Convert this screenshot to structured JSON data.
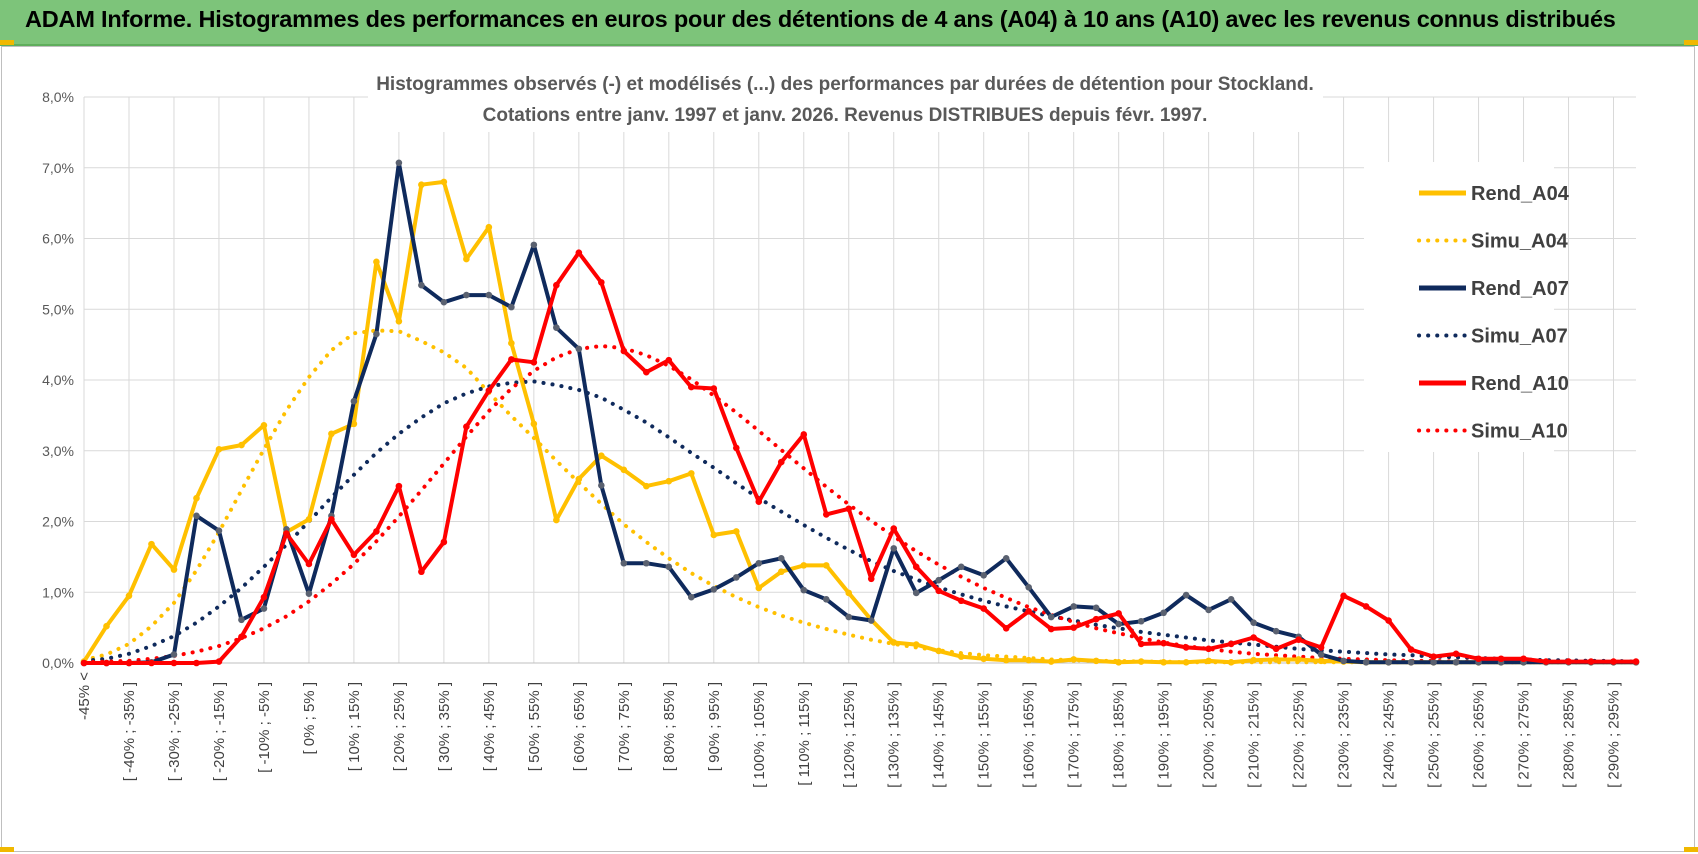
{
  "header": {
    "title": "ADAM Informe. Histogrammes des performances en euros pour des détentions de 4 ans (A04) à 10 ans (A10) avec les revenus connus distribués"
  },
  "colors": {
    "banner": "#7dc47a",
    "a04": "#ffc000",
    "a07": "#0f2a5c",
    "a10": "#ff0000",
    "marker_a07": "#5a6170"
  },
  "chart_data": {
    "type": "line",
    "title_lines": [
      "Histogrammes observés (-) et modélisés (...) des performances par durées de détention pour Stockland.",
      "Cotations entre janv. 1997 et janv. 2026. Revenus DISTRIBUES depuis févr. 1997."
    ],
    "ylim": [
      0,
      8
    ],
    "yticks": [
      "0,0%",
      "1,0%",
      "2,0%",
      "3,0%",
      "4,0%",
      "5,0%",
      "6,0%",
      "7,0%",
      "8,0%"
    ],
    "x_labels": [
      "-45% <",
      "[ -40% ; -35% ]",
      "[ -30% ; -25% ]",
      "[ -20% ; -15% ]",
      "[ -10% ; -5% ]",
      "[ 0% ; 5% ]",
      "[ 10% ; 15% ]",
      "[ 20% ; 25% ]",
      "[ 30% ; 35% ]",
      "[ 40% ; 45% ]",
      "[ 50% ; 55% ]",
      "[ 60% ; 65% ]",
      "[ 70% ; 75% ]",
      "[ 80% ; 85% ]",
      "[ 90% ; 95% ]",
      "[ 100% ; 105% ]",
      "[ 110% ; 115% ]",
      "[ 120% ; 125% ]",
      "[ 130% ; 135% ]",
      "[ 140% ; 145% ]",
      "[ 150% ; 155% ]",
      "[ 160% ; 165% ]",
      "[ 170% ; 175% ]",
      "[ 180% ; 185% ]",
      "[ 190% ; 195% ]",
      "[ 200% ; 205% ]",
      "[ 210% ; 215% ]",
      "[ 220% ; 225% ]",
      "[ 230% ; 235% ]",
      "[ 240% ; 245% ]",
      "[ 250% ; 255% ]",
      "[ 260% ; 265% ]",
      "[ 270% ; 275% ]",
      "[ 280% ; 285% ]",
      "[ 290% ; 295% ]"
    ],
    "legend_position": "right",
    "series": [
      {
        "name": "Rend_A04",
        "style": "solid",
        "color": "#ffc000",
        "values": [
          0.02,
          0.52,
          0.95,
          1.68,
          1.32,
          2.33,
          3.02,
          3.08,
          3.36,
          1.85,
          2.03,
          3.24,
          3.38,
          5.67,
          4.83,
          6.76,
          6.8,
          5.71,
          6.16,
          4.52,
          3.38,
          2.02,
          2.6,
          2.93,
          2.73,
          2.5,
          2.57,
          2.68,
          1.81,
          1.86,
          1.06,
          1.29,
          1.38,
          1.38,
          0.99,
          0.61,
          0.29,
          0.26,
          0.17,
          0.09,
          0.06,
          0.04,
          0.04,
          0.02,
          0.05,
          0.03,
          0.01,
          0.02,
          0.01,
          0.01,
          0.03,
          0.01,
          0.04,
          0.05,
          0.05,
          0.03,
          0.02,
          0.01,
          0.01,
          0.01,
          0.01,
          0.01,
          0.01,
          0.01,
          0.01,
          0.01,
          0.01,
          0.01,
          0.01,
          0.01
        ]
      },
      {
        "name": "Simu_A04",
        "style": "dotted",
        "color": "#ffc000",
        "values": [
          0.04,
          0.12,
          0.27,
          0.52,
          0.85,
          1.31,
          1.85,
          2.44,
          3.02,
          3.57,
          4.04,
          4.42,
          4.66,
          4.7,
          4.69,
          4.55,
          4.39,
          4.17,
          3.82,
          3.49,
          3.18,
          2.86,
          2.55,
          2.25,
          1.96,
          1.71,
          1.48,
          1.27,
          1.09,
          0.93,
          0.79,
          0.67,
          0.57,
          0.48,
          0.4,
          0.33,
          0.27,
          0.22,
          0.18,
          0.14,
          0.11,
          0.09,
          0.07,
          0.05,
          0.04,
          0.03,
          0.03,
          0.02,
          0.02,
          0.01,
          0.01,
          0.01,
          0.01,
          0.01,
          0.01,
          0.01,
          0.01,
          0.01,
          0.01,
          0.01,
          0.01,
          0.01,
          0.01,
          0.01,
          0.01,
          0.01,
          0.01,
          0.01,
          0.01,
          0.01
        ]
      },
      {
        "name": "Rend_A07",
        "style": "solid",
        "color": "#0f2a5c",
        "values": [
          0,
          0,
          0,
          0.01,
          0.12,
          2.08,
          1.87,
          0.61,
          0.77,
          1.89,
          0.98,
          2.08,
          3.7,
          4.65,
          7.07,
          5.34,
          5.1,
          5.2,
          5.2,
          5.03,
          5.91,
          4.74,
          4.44,
          2.51,
          1.41,
          1.41,
          1.36,
          0.93,
          1.04,
          1.21,
          1.41,
          1.48,
          1.03,
          0.9,
          0.65,
          0.6,
          1.62,
          0.99,
          1.17,
          1.36,
          1.24,
          1.48,
          1.07,
          0.65,
          0.8,
          0.78,
          0.55,
          0.59,
          0.71,
          0.96,
          0.75,
          0.9,
          0.57,
          0.45,
          0.37,
          0.12,
          0.03,
          0.01,
          0.01,
          0.01,
          0.01,
          0.01,
          0.01,
          0.01,
          0.01,
          0.01,
          0.01,
          0.01,
          0.01,
          0.01
        ]
      },
      {
        "name": "Simu_A07",
        "style": "dotted",
        "color": "#0f2a5c",
        "values": [
          0.03,
          0.06,
          0.13,
          0.24,
          0.38,
          0.57,
          0.8,
          1.06,
          1.36,
          1.67,
          2.0,
          2.34,
          2.66,
          2.97,
          3.24,
          3.47,
          3.67,
          3.81,
          3.91,
          3.96,
          3.98,
          3.93,
          3.86,
          3.75,
          3.58,
          3.4,
          3.19,
          2.97,
          2.76,
          2.54,
          2.33,
          2.14,
          1.95,
          1.77,
          1.6,
          1.44,
          1.3,
          1.18,
          1.07,
          0.97,
          0.88,
          0.8,
          0.73,
          0.66,
          0.6,
          0.54,
          0.49,
          0.44,
          0.4,
          0.36,
          0.32,
          0.29,
          0.26,
          0.23,
          0.2,
          0.18,
          0.16,
          0.14,
          0.12,
          0.11,
          0.09,
          0.08,
          0.07,
          0.06,
          0.05,
          0.04,
          0.04,
          0.03,
          0.03,
          0.02
        ]
      },
      {
        "name": "Rend_A10",
        "style": "solid",
        "color": "#ff0000",
        "values": [
          0,
          0,
          0,
          0,
          0,
          0,
          0.02,
          0.37,
          0.93,
          1.83,
          1.4,
          2.03,
          1.53,
          1.86,
          2.5,
          1.29,
          1.71,
          3.34,
          3.85,
          4.29,
          4.25,
          5.34,
          5.8,
          5.38,
          4.41,
          4.11,
          4.28,
          3.9,
          3.88,
          3.04,
          2.28,
          2.84,
          3.23,
          2.1,
          2.18,
          1.19,
          1.9,
          1.36,
          1.02,
          0.88,
          0.77,
          0.49,
          0.73,
          0.48,
          0.5,
          0.62,
          0.7,
          0.27,
          0.28,
          0.22,
          0.2,
          0.27,
          0.36,
          0.2,
          0.33,
          0.22,
          0.95,
          0.8,
          0.6,
          0.19,
          0.09,
          0.13,
          0.06,
          0.06,
          0.06,
          0.02,
          0.02,
          0.02,
          0.02,
          0.02
        ]
      },
      {
        "name": "Simu_A10",
        "style": "dotted",
        "color": "#ff0000",
        "values": [
          0.01,
          0.02,
          0.03,
          0.06,
          0.1,
          0.16,
          0.24,
          0.35,
          0.49,
          0.66,
          0.87,
          1.12,
          1.4,
          1.72,
          2.07,
          2.44,
          2.82,
          3.2,
          3.56,
          3.88,
          4.13,
          4.32,
          4.44,
          4.48,
          4.45,
          4.35,
          4.2,
          4.01,
          3.78,
          3.54,
          3.28,
          3.01,
          2.75,
          2.49,
          2.24,
          2.01,
          1.79,
          1.58,
          1.39,
          1.22,
          1.06,
          0.92,
          0.79,
          0.68,
          0.58,
          0.49,
          0.42,
          0.35,
          0.29,
          0.24,
          0.2,
          0.16,
          0.13,
          0.11,
          0.09,
          0.07,
          0.06,
          0.05,
          0.04,
          0.03,
          0.03,
          0.02,
          0.02,
          0.01,
          0.01,
          0.01,
          0.01,
          0.01,
          0.01,
          0.01
        ]
      }
    ]
  }
}
